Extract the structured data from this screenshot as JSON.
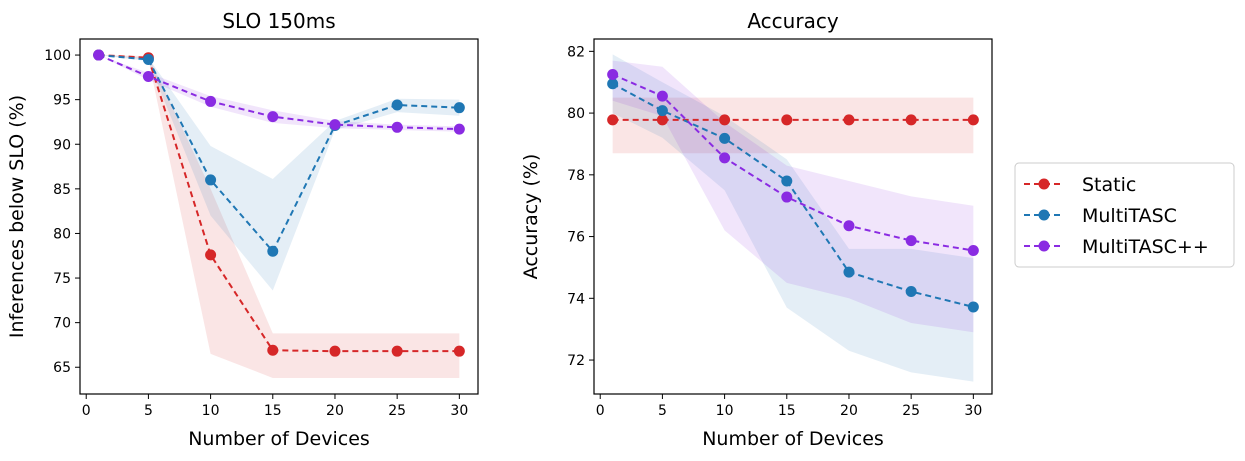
{
  "colors": {
    "Static": "#d62728",
    "MultiTASC": "#1f77b4",
    "MultiTASC++": "#8a2be2"
  },
  "legend": {
    "placement": "right",
    "entries": [
      "Static",
      "MultiTASC",
      "MultiTASC++"
    ]
  },
  "chart_data": [
    {
      "type": "line",
      "title": "SLO 150ms",
      "xlabel": "Number of Devices",
      "ylabel": "Inferences below SLO (%)",
      "x": [
        1,
        5,
        10,
        15,
        20,
        25,
        30
      ],
      "xticks": [
        0,
        5,
        10,
        15,
        20,
        25,
        30
      ],
      "yticks": [
        65,
        70,
        75,
        80,
        85,
        90,
        95,
        100
      ],
      "xlim": [
        -0.5,
        31.5
      ],
      "ylim": [
        62,
        101.8
      ],
      "grid": false,
      "series": [
        {
          "name": "Static",
          "values": [
            100,
            99.7,
            77.6,
            66.9,
            66.8,
            66.8,
            66.8
          ],
          "lower": [
            100,
            99.5,
            66.5,
            63.8,
            63.8,
            63.8,
            63.8
          ],
          "upper": [
            100,
            99.9,
            85.0,
            68.8,
            68.8,
            68.8,
            68.8
          ]
        },
        {
          "name": "MultiTASC",
          "values": [
            100,
            99.5,
            86.0,
            78.0,
            92.1,
            94.4,
            94.1
          ],
          "lower": [
            100,
            99.3,
            82.0,
            73.6,
            91.6,
            93.6,
            93.2
          ],
          "upper": [
            100,
            99.7,
            89.8,
            86.1,
            92.6,
            95.1,
            95.0
          ]
        },
        {
          "name": "MultiTASC++",
          "values": [
            100,
            97.6,
            94.8,
            93.1,
            92.2,
            91.9,
            91.7
          ],
          "lower": [
            100,
            97.2,
            94.2,
            92.4,
            91.8,
            91.6,
            91.4
          ],
          "upper": [
            100,
            98.0,
            95.4,
            93.8,
            92.6,
            92.2,
            92.0
          ]
        }
      ]
    },
    {
      "type": "line",
      "title": "Accuracy",
      "xlabel": "Number of Devices",
      "ylabel": "Accuracy (%)",
      "x": [
        1,
        5,
        10,
        15,
        20,
        25,
        30
      ],
      "xticks": [
        0,
        5,
        10,
        15,
        20,
        25,
        30
      ],
      "yticks": [
        72,
        74,
        76,
        78,
        80,
        82
      ],
      "xlim": [
        -0.5,
        31.5
      ],
      "ylim": [
        70.9,
        82.4
      ],
      "grid": false,
      "series": [
        {
          "name": "Static",
          "values": [
            79.78,
            79.78,
            79.78,
            79.78,
            79.78,
            79.78,
            79.78
          ],
          "lower": [
            78.7,
            78.7,
            78.7,
            78.7,
            78.7,
            78.7,
            78.7
          ],
          "upper": [
            80.5,
            80.5,
            80.5,
            80.5,
            80.5,
            80.5,
            80.5
          ]
        },
        {
          "name": "MultiTASC",
          "values": [
            80.95,
            80.08,
            79.18,
            77.8,
            74.85,
            74.22,
            73.72
          ],
          "lower": [
            80.0,
            79.2,
            77.5,
            73.7,
            72.3,
            71.6,
            71.3
          ],
          "upper": [
            81.9,
            81.0,
            79.9,
            78.5,
            75.6,
            75.6,
            75.3
          ]
        },
        {
          "name": "MultiTASC++",
          "values": [
            81.25,
            80.55,
            78.55,
            77.28,
            76.35,
            75.87,
            75.55
          ],
          "lower": [
            80.4,
            79.9,
            76.2,
            74.5,
            74.0,
            73.2,
            72.9
          ],
          "upper": [
            81.7,
            81.5,
            79.7,
            78.3,
            77.8,
            77.3,
            77.0
          ]
        }
      ]
    }
  ]
}
